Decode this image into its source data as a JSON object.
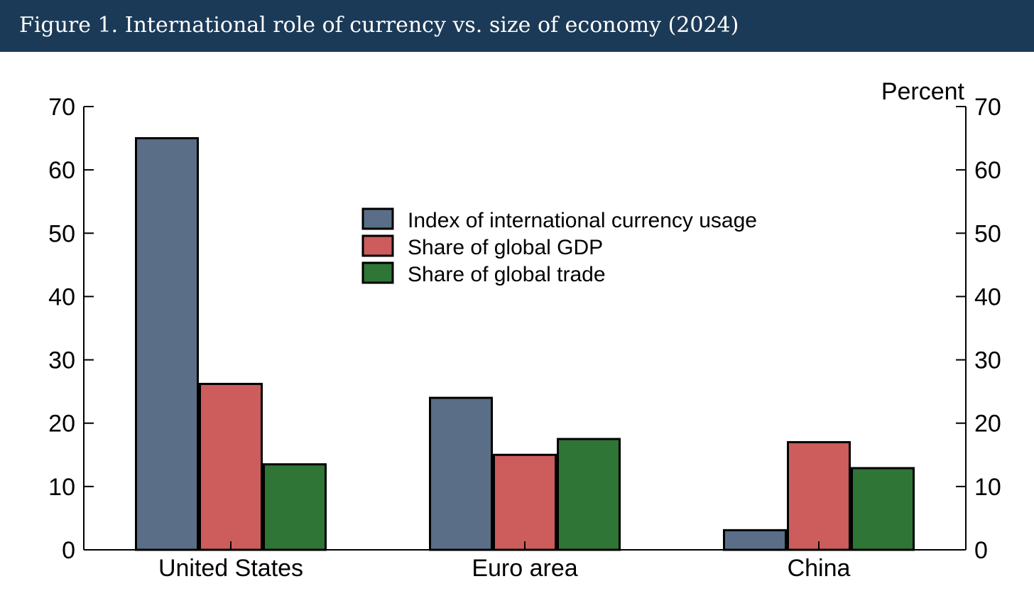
{
  "header": {
    "title": "Figure 1. International role of currency vs. size of economy (2024)"
  },
  "chart_data": {
    "type": "bar",
    "title": "Figure 1. International role of currency vs. size of economy (2024)",
    "unit_label": "Percent",
    "categories": [
      "United States",
      "Euro area",
      "China"
    ],
    "series": [
      {
        "name": "Index of international currency usage",
        "values": [
          65,
          24,
          3.1
        ],
        "color": "#5a6e87"
      },
      {
        "name": "Share of global GDP",
        "values": [
          26.2,
          15,
          17
        ],
        "color": "#cd5c5c"
      },
      {
        "name": "Share of global trade",
        "values": [
          13.5,
          17.5,
          12.9
        ],
        "color": "#2e7536"
      }
    ],
    "ylim": [
      0,
      70
    ],
    "yticks": [
      0,
      10,
      20,
      30,
      40,
      50,
      60,
      70
    ],
    "dual_y_axis": true,
    "grid": false,
    "legend_position": "top-center"
  }
}
